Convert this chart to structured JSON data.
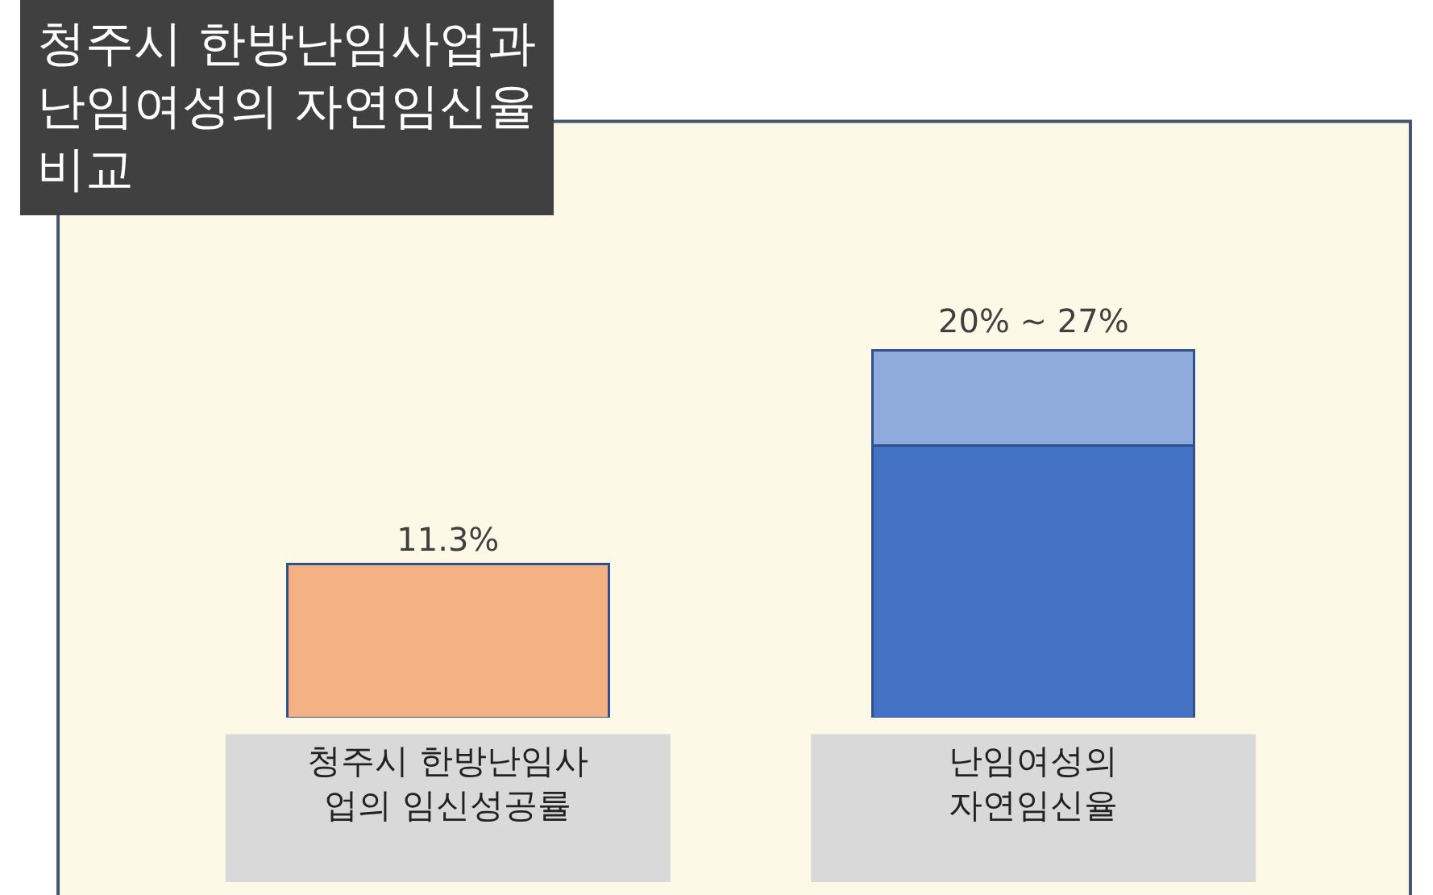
{
  "chart_data": {
    "type": "bar",
    "title": "청주시 한방난임사업과\n난임여성의 자연임신율\n비교",
    "categories": [
      "청주시 한방난임사\n업의 임신성공률",
      "난임여성의\n자연임신율"
    ],
    "stacked": true,
    "grid": false,
    "series": [
      {
        "colors": [
          "#f4b183",
          "#4472c4"
        ],
        "values": [
          11.3,
          20
        ],
        "value_labels": [
          "11.3%",
          null
        ]
      },
      {
        "color": "#8faadc",
        "values": [
          null,
          7
        ]
      }
    ],
    "annotations": [
      {
        "text": "20% ~ 27%",
        "x": "난임여성의\n자연임신율",
        "y": 27
      }
    ]
  }
}
